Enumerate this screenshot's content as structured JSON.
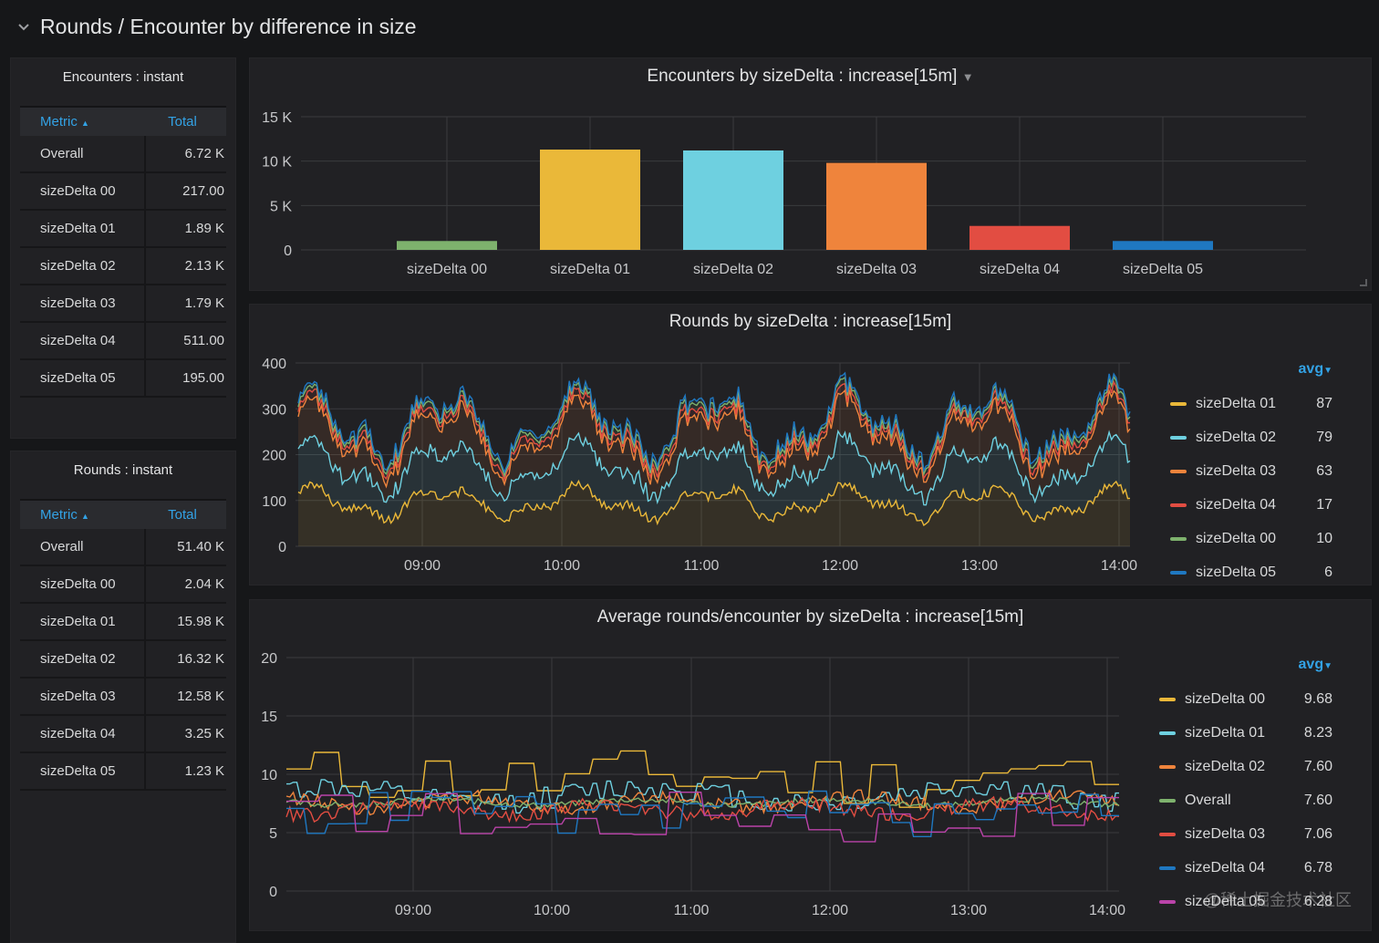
{
  "row": {
    "title": "Rounds / Encounter by difference in size",
    "collapse_icon": "chevron-down-icon"
  },
  "encounters_table": {
    "title": "Encounters : instant",
    "headers": {
      "metric": "Metric",
      "total": "Total",
      "sort_icon": "sort-asc-icon"
    },
    "rows": [
      {
        "metric": "Overall",
        "total": "6.72 K"
      },
      {
        "metric": "sizeDelta 00",
        "total": "217.00"
      },
      {
        "metric": "sizeDelta 01",
        "total": "1.89 K"
      },
      {
        "metric": "sizeDelta 02",
        "total": "2.13 K"
      },
      {
        "metric": "sizeDelta 03",
        "total": "1.79 K"
      },
      {
        "metric": "sizeDelta 04",
        "total": "511.00"
      },
      {
        "metric": "sizeDelta 05",
        "total": "195.00"
      }
    ]
  },
  "rounds_table": {
    "title": "Rounds : instant",
    "headers": {
      "metric": "Metric",
      "total": "Total",
      "sort_icon": "sort-asc-icon"
    },
    "rows": [
      {
        "metric": "Overall",
        "total": "51.40 K"
      },
      {
        "metric": "sizeDelta 00",
        "total": "2.04 K"
      },
      {
        "metric": "sizeDelta 01",
        "total": "15.98 K"
      },
      {
        "metric": "sizeDelta 02",
        "total": "16.32 K"
      },
      {
        "metric": "sizeDelta 03",
        "total": "12.58 K"
      },
      {
        "metric": "sizeDelta 04",
        "total": "3.25 K"
      },
      {
        "metric": "sizeDelta 05",
        "total": "1.23 K"
      }
    ]
  },
  "colors": {
    "green": "#7eb26d",
    "yellow": "#eab839",
    "cyan": "#6ed0e0",
    "orange": "#ef843c",
    "red": "#e24d42",
    "blue": "#1f78c1",
    "purple": "#ba43a9"
  },
  "legend_sort_label": "avg",
  "watermark": "@稀土掘金技术社区",
  "chart_data": [
    {
      "type": "bar",
      "title": "Encounters by sizeDelta : increase[15m]",
      "categories": [
        "sizeDelta 00",
        "sizeDelta 01",
        "sizeDelta 02",
        "sizeDelta 03",
        "sizeDelta 04",
        "sizeDelta 05"
      ],
      "values": [
        1000,
        11300,
        11200,
        9800,
        2700,
        1000
      ],
      "colors": [
        "#7eb26d",
        "#eab839",
        "#6ed0e0",
        "#ef843c",
        "#e24d42",
        "#1f78c1"
      ],
      "yticks": [
        "0",
        "5 K",
        "10 K",
        "15 K"
      ],
      "ylim": [
        0,
        15000
      ],
      "grid": true
    },
    {
      "type": "area",
      "title": "Rounds by sizeDelta : increase[15m]",
      "xticks": [
        "09:00",
        "10:00",
        "11:00",
        "12:00",
        "13:00",
        "14:00"
      ],
      "yticks": [
        "0",
        "100",
        "200",
        "300",
        "400"
      ],
      "ylim": [
        0,
        400
      ],
      "xrange": [
        "08:05",
        "14:05"
      ],
      "stacked": true,
      "legend_position": "right",
      "legend": [
        {
          "name": "sizeDelta 01",
          "avg": "87",
          "color": "#eab839"
        },
        {
          "name": "sizeDelta 02",
          "avg": "79",
          "color": "#6ed0e0"
        },
        {
          "name": "sizeDelta 03",
          "avg": "63",
          "color": "#ef843c"
        },
        {
          "name": "sizeDelta 04",
          "avg": "17",
          "color": "#e24d42"
        },
        {
          "name": "sizeDelta 00",
          "avg": "10",
          "color": "#7eb26d"
        },
        {
          "name": "sizeDelta 05",
          "avg": "6",
          "color": "#1f78c1"
        }
      ],
      "series_shape": {
        "sizeDelta 01": {
          "mean": 87,
          "peaks_hour": [
            8.5,
            9.2,
            9.85,
            10.4,
            11.3,
            11.85,
            12.5,
            13.2,
            14.0
          ]
        },
        "stack_top_approx": {
          "min": 180,
          "max": 350
        }
      }
    },
    {
      "type": "line",
      "title": "Average rounds/encounter by sizeDelta : increase[15m]",
      "xticks": [
        "09:00",
        "10:00",
        "11:00",
        "12:00",
        "13:00",
        "14:00"
      ],
      "yticks": [
        "0",
        "5",
        "10",
        "15",
        "20"
      ],
      "ylim": [
        0,
        20
      ],
      "xrange": [
        "08:05",
        "14:05"
      ],
      "legend_position": "right",
      "legend": [
        {
          "name": "sizeDelta 00",
          "avg": "9.68",
          "color": "#eab839"
        },
        {
          "name": "sizeDelta 01",
          "avg": "8.23",
          "color": "#6ed0e0"
        },
        {
          "name": "sizeDelta 02",
          "avg": "7.60",
          "color": "#ef843c"
        },
        {
          "name": "Overall",
          "avg": "7.60",
          "color": "#7eb26d"
        },
        {
          "name": "sizeDelta 03",
          "avg": "7.06",
          "color": "#e24d42"
        },
        {
          "name": "sizeDelta 04",
          "avg": "6.78",
          "color": "#1f78c1"
        },
        {
          "name": "sizeDelta 05",
          "avg": "6.28",
          "color": "#ba43a9"
        }
      ]
    }
  ]
}
